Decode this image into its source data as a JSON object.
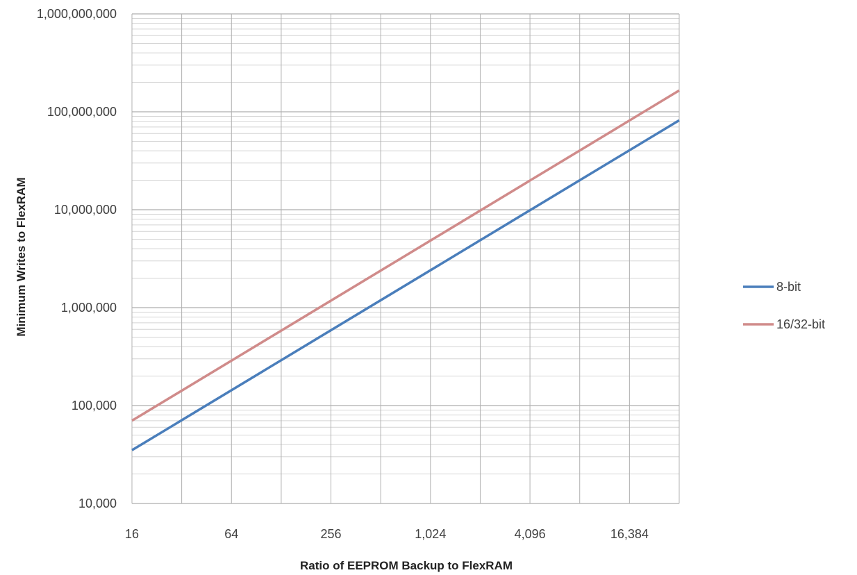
{
  "chart_data": {
    "type": "line",
    "title": "",
    "xlabel": "Ratio of EEPROM Backup to FlexRAM",
    "ylabel": "Minimum Writes to FlexRAM",
    "x_scale": "log2",
    "y_scale": "log10",
    "xlim": [
      16,
      32768
    ],
    "ylim": [
      10000,
      1000000000
    ],
    "x_ticks": [
      16,
      64,
      256,
      1024,
      4096,
      16384
    ],
    "x_tick_labels": [
      "16",
      "64",
      "256",
      "1,024",
      "4,096",
      "16,384"
    ],
    "y_ticks": [
      10000,
      100000,
      1000000,
      10000000,
      100000000,
      1000000000
    ],
    "y_tick_labels": [
      "10,000",
      "100,000",
      "1,000,000",
      "10,000,000",
      "100,000,000",
      "1,000,000,000"
    ],
    "grid": true,
    "legend_position": "right",
    "series": [
      {
        "name": "8-bit",
        "color": "#4a7ebb",
        "x": [
          16,
          32768
        ],
        "y": [
          35000,
          82000000
        ]
      },
      {
        "name": "16/32-bit",
        "color": "#d08b8a",
        "x": [
          16,
          32768
        ],
        "y": [
          70000,
          165000000
        ]
      }
    ]
  }
}
